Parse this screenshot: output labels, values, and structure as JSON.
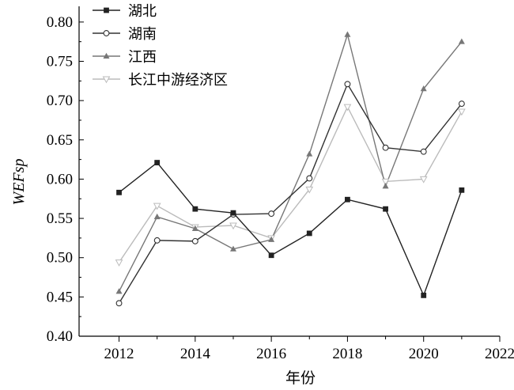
{
  "chart_data": {
    "type": "line",
    "title": "",
    "xlabel": "年份",
    "ylabel": "WEFsp",
    "x": [
      2012,
      2013,
      2014,
      2015,
      2016,
      2017,
      2018,
      2019,
      2020,
      2021
    ],
    "xlim": [
      2010.95,
      2022
    ],
    "ylim": [
      0.4,
      0.82
    ],
    "xticks": [
      2012,
      2014,
      2016,
      2018,
      2020,
      2022
    ],
    "yticks": [
      0.4,
      0.45,
      0.5,
      0.55,
      0.6,
      0.65,
      0.7,
      0.75,
      0.8
    ],
    "xtick_labels": [
      "2012",
      "2014",
      "2016",
      "2018",
      "2020",
      "2022"
    ],
    "ytick_labels": [
      "0.40",
      "0.45",
      "0.50",
      "0.55",
      "0.60",
      "0.65",
      "0.70",
      "0.75",
      "0.80"
    ],
    "grid": false,
    "legend_position": "top-left",
    "series": [
      {
        "name": "湖北",
        "marker": "square",
        "color": "#222222",
        "values": [
          0.583,
          0.621,
          0.562,
          0.557,
          0.503,
          0.531,
          0.574,
          0.562,
          0.452,
          0.586
        ]
      },
      {
        "name": "湖南",
        "marker": "circle-open",
        "color": "#333333",
        "values": [
          0.442,
          0.522,
          0.521,
          0.555,
          0.556,
          0.601,
          0.721,
          0.64,
          0.635,
          0.696
        ]
      },
      {
        "name": "江西",
        "marker": "triangle-up",
        "color": "#777777",
        "values": [
          0.457,
          0.552,
          0.537,
          0.511,
          0.523,
          0.632,
          0.784,
          0.591,
          0.715,
          0.775
        ]
      },
      {
        "name": "长江中游经济区",
        "marker": "triangle-down-open",
        "color": "#bbbbbb",
        "values": [
          0.494,
          0.566,
          0.539,
          0.541,
          0.525,
          0.587,
          0.692,
          0.597,
          0.6,
          0.686
        ]
      }
    ]
  }
}
